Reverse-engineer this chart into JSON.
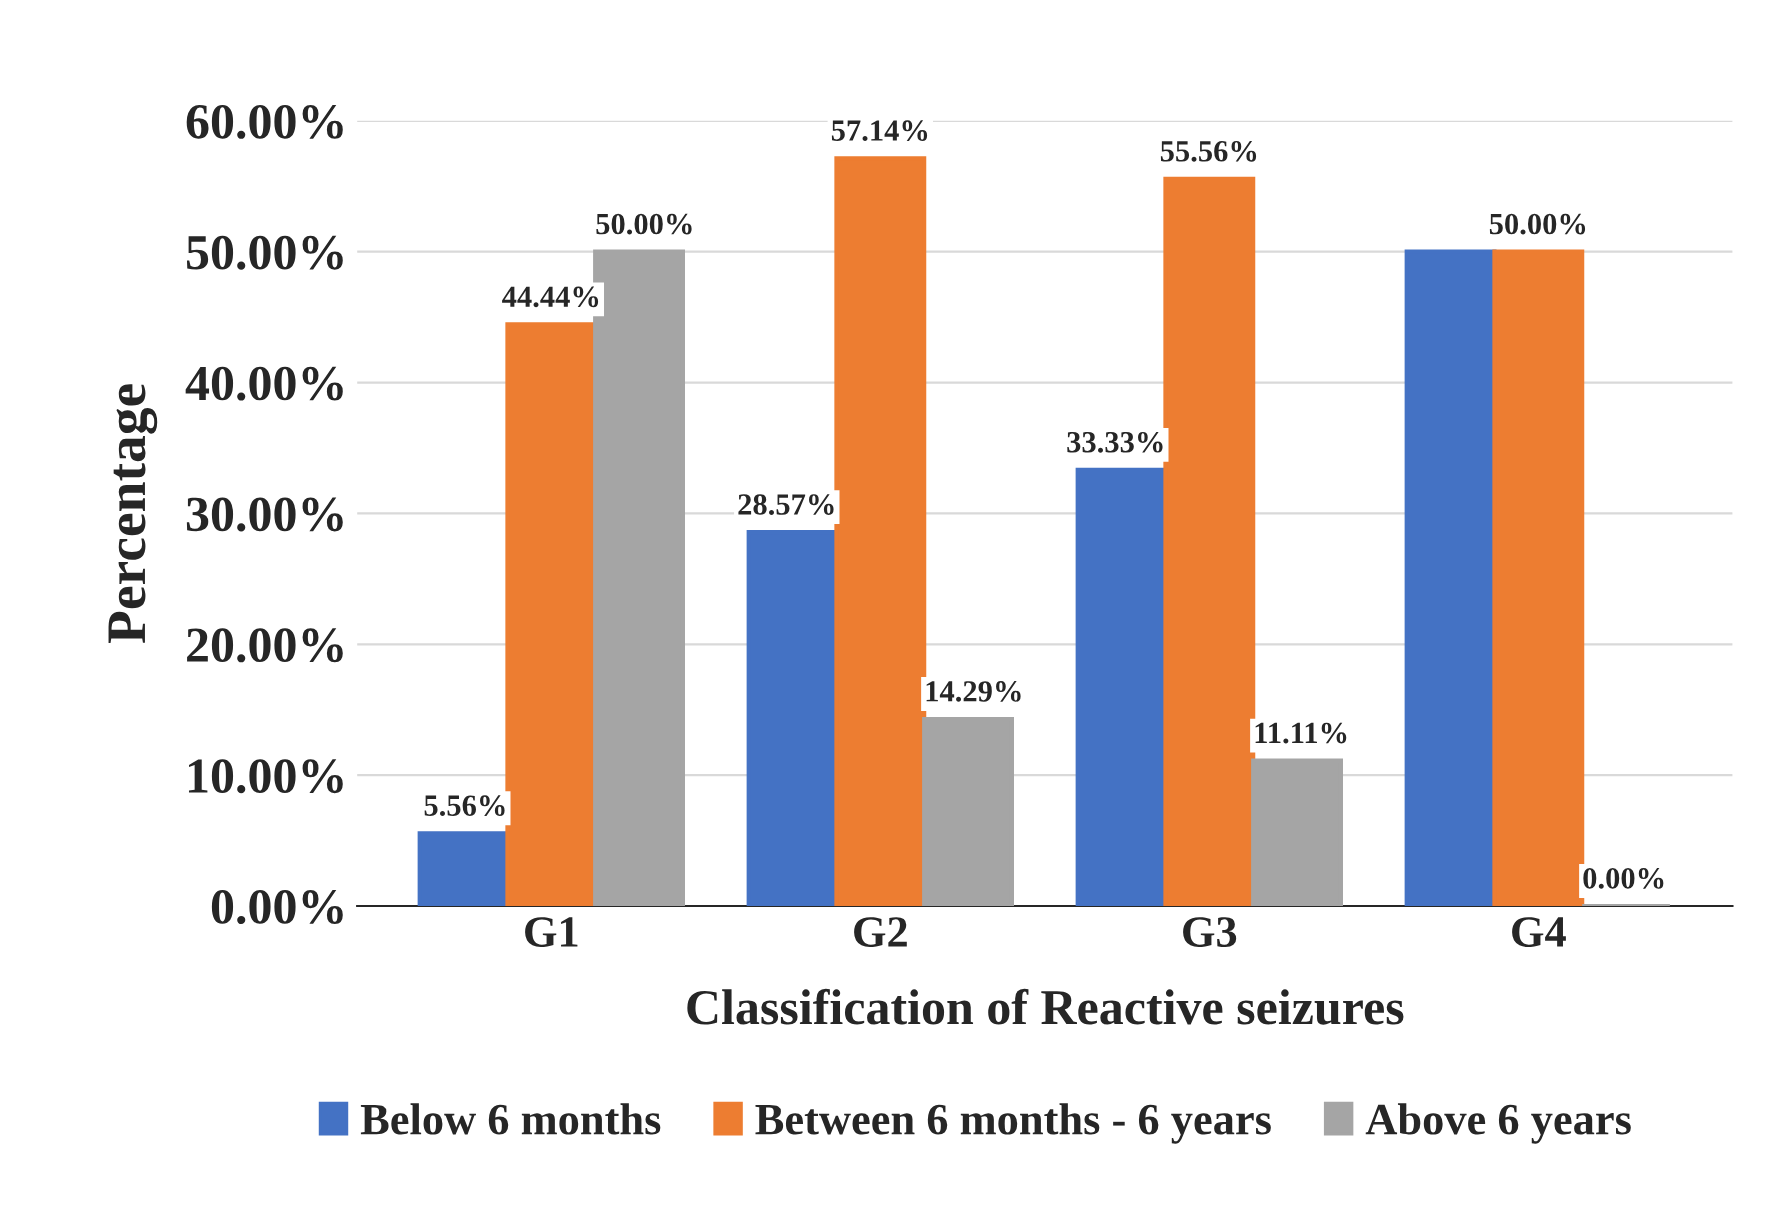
{
  "chart_data": {
    "type": "bar",
    "xlabel": "Classification of Reactive seizures",
    "ylabel": "Percentage",
    "categories": [
      "G1",
      "G2",
      "G3",
      "G4"
    ],
    "series": [
      {
        "name": "Below 6 months",
        "color": "#4472c4",
        "values": [
          5.56,
          28.57,
          33.33,
          50.0
        ],
        "value_labels": [
          "5.56%",
          "28.57%",
          "33.33%",
          null
        ]
      },
      {
        "name": "Between 6 months - 6 years",
        "color": "#ed7d31",
        "values": [
          44.44,
          57.14,
          55.56,
          50.0
        ],
        "value_labels": [
          "44.44%",
          "57.14%",
          "55.56%",
          "50.00%"
        ]
      },
      {
        "name": "Above 6 years",
        "color": "#a5a5a5",
        "values": [
          50.0,
          14.29,
          11.11,
          0.0
        ],
        "value_labels": [
          "50.00%",
          "14.29%",
          "11.11%",
          "0.00%"
        ]
      }
    ],
    "ylim": [
      0,
      60
    ],
    "yticks": [
      {
        "value": 0,
        "label": "0.00%"
      },
      {
        "value": 10,
        "label": "10.00%"
      },
      {
        "value": 20,
        "label": "20.00%"
      },
      {
        "value": 30,
        "label": "30.00%"
      },
      {
        "value": 40,
        "label": "40.00%"
      },
      {
        "value": 50,
        "label": "50.00%"
      },
      {
        "value": 60,
        "label": "60.00%"
      }
    ],
    "grid": "y",
    "legend": "bottom"
  }
}
